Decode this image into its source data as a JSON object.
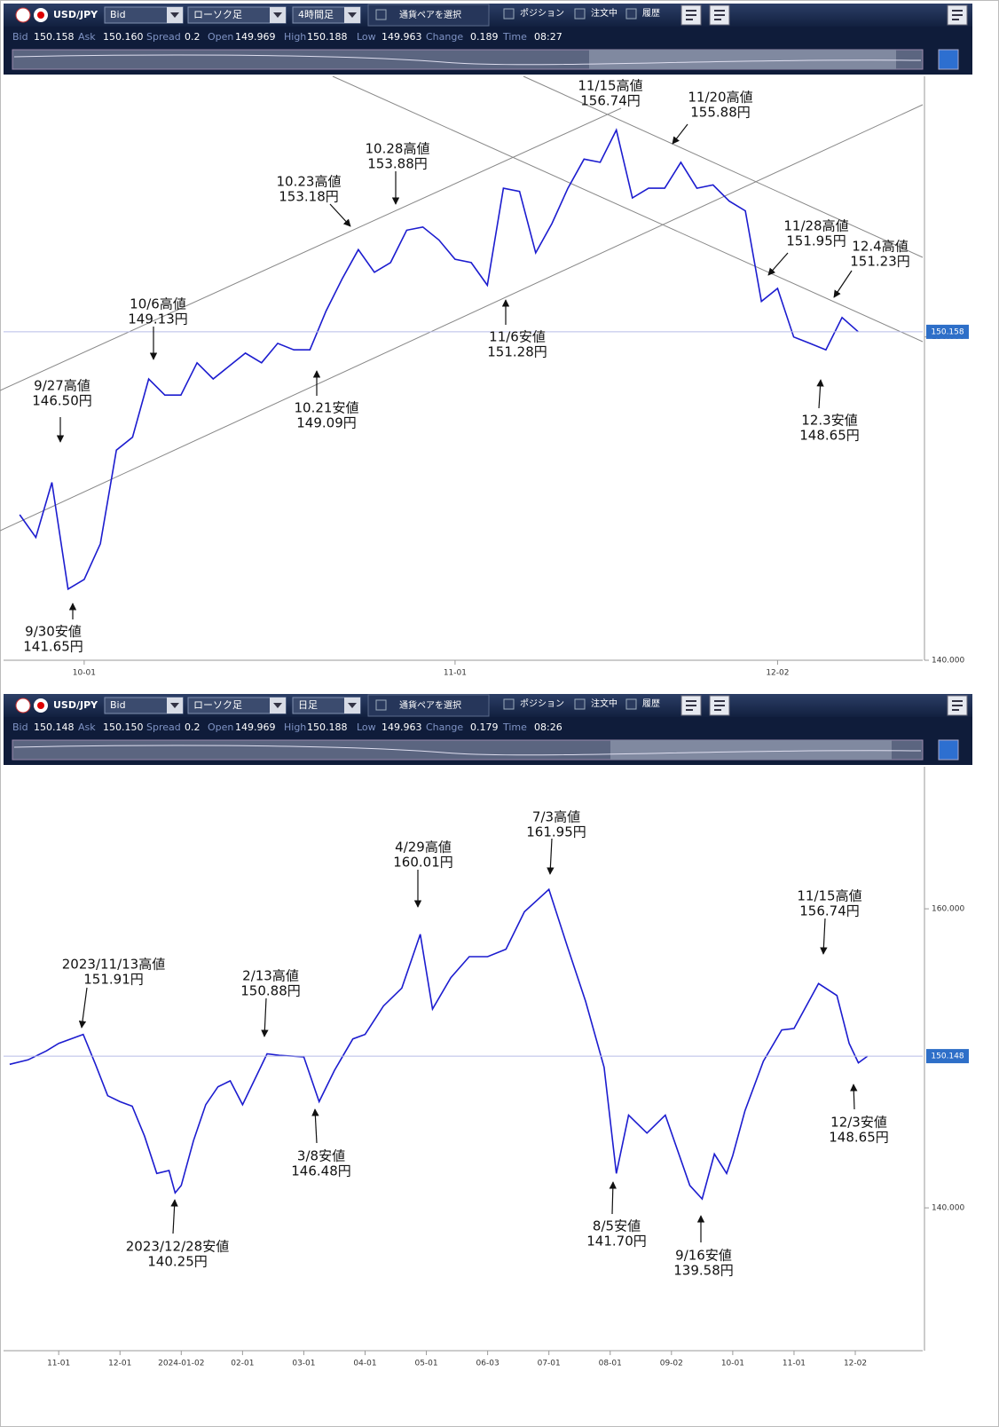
{
  "panels": [
    {
      "toolbar": {
        "pair": "USD/JPY",
        "side": "Bid",
        "chart_type": "ローソク足",
        "period": "4時間足",
        "select": "通貨ペアを選択",
        "position": "ポジション",
        "orders": "注文中",
        "history": "履歴"
      },
      "info": [
        {
          "label": "Bid",
          "value": "150.158"
        },
        {
          "label": "Ask",
          "value": "150.160"
        },
        {
          "label": "Spread",
          "value": "0.2"
        },
        {
          "label": "Open",
          "value": "149.969"
        },
        {
          "label": "High",
          "value": "150.188"
        },
        {
          "label": "Low",
          "value": "149.963"
        },
        {
          "label": "Change",
          "value": "0.189"
        },
        {
          "label": "Time",
          "value": "08:27"
        }
      ],
      "chart": {
        "type": "line",
        "color": "#1c1ccf",
        "x": [
          -4,
          -3,
          -2,
          -1,
          0,
          1,
          2,
          3,
          4,
          5,
          6,
          7,
          8,
          9,
          10,
          11,
          12,
          13,
          14,
          15,
          16,
          17,
          18,
          19,
          20,
          21,
          22,
          23,
          24,
          25,
          26,
          27,
          28,
          29,
          30,
          31,
          32,
          33,
          34,
          35,
          36,
          37,
          38,
          39,
          40,
          41,
          42,
          43,
          44,
          45,
          46,
          47,
          48
        ],
        "values": [
          144.5,
          143.8,
          145.5,
          142.2,
          142.5,
          143.6,
          146.5,
          146.9,
          148.7,
          148.2,
          148.2,
          149.2,
          148.7,
          149.1,
          149.5,
          149.2,
          149.8,
          149.6,
          149.6,
          150.8,
          151.8,
          152.7,
          152.0,
          152.3,
          153.3,
          153.4,
          153.0,
          152.4,
          152.3,
          151.6,
          154.6,
          154.5,
          152.6,
          153.5,
          154.6,
          155.5,
          155.4,
          156.4,
          154.3,
          154.6,
          154.6,
          155.4,
          154.6,
          154.7,
          154.2,
          153.9,
          151.1,
          151.5,
          150.0,
          149.8,
          149.6,
          150.6,
          150.16
        ],
        "xlim": [
          -5,
          52
        ],
        "ylim": [
          140,
          158.06
        ],
        "xticks": [
          {
            "value": 0,
            "label": "10-01"
          },
          {
            "value": 23,
            "label": "11-01"
          },
          {
            "value": 43,
            "label": "12-02"
          }
        ],
        "yticks": [
          {
            "value": 140,
            "label": "140.000"
          },
          {
            "value": 150,
            "label": "150.000"
          }
        ],
        "current_price": {
          "value": 150.158,
          "label": "150.158"
        },
        "annotations": [
          {
            "label": "9/27高値",
            "price": "146.50円"
          },
          {
            "label": "9/30安値",
            "price": "141.65円"
          },
          {
            "label": "10/6高値",
            "price": "149.13円"
          },
          {
            "label": "10.23高値",
            "price": "153.18円"
          },
          {
            "label": "10.28高値",
            "price": "153.88円"
          },
          {
            "label": "10.21安値",
            "price": "149.09円"
          },
          {
            "label": "11/6安値",
            "price": "151.28円"
          },
          {
            "label": "11/15高値",
            "price": "156.74円"
          },
          {
            "label": "11/20高値",
            "price": "155.88円"
          },
          {
            "label": "11/28高値",
            "price": "151.95円"
          },
          {
            "label": "12.4高値",
            "price": "151.23円"
          },
          {
            "label": "12.3安値",
            "price": "148.65円"
          }
        ]
      }
    },
    {
      "toolbar": {
        "pair": "USD/JPY",
        "side": "Bid",
        "chart_type": "ローソク足",
        "period": "日足",
        "select": "通貨ペアを選択",
        "position": "ポジション",
        "orders": "注文中",
        "history": "履歴"
      },
      "info": [
        {
          "label": "Bid",
          "value": "150.148"
        },
        {
          "label": "Ask",
          "value": "150.150"
        },
        {
          "label": "Spread",
          "value": "0.2"
        },
        {
          "label": "Open",
          "value": "149.969"
        },
        {
          "label": "High",
          "value": "150.188"
        },
        {
          "label": "Low",
          "value": "149.963"
        },
        {
          "label": "Change",
          "value": "0.179"
        },
        {
          "label": "Time",
          "value": "08:26"
        }
      ],
      "chart": {
        "type": "line",
        "color": "#1c1ccf",
        "x": [
          -0.8,
          -0.5,
          -0.2,
          0,
          0.4,
          0.6,
          0.8,
          1.0,
          1.2,
          1.4,
          1.6,
          1.8,
          1.9,
          2.0,
          2.2,
          2.4,
          2.6,
          2.8,
          3.0,
          3.4,
          3.6,
          4.0,
          4.25,
          4.5,
          4.8,
          5.0,
          5.3,
          5.6,
          5.9,
          6.1,
          6.4,
          6.7,
          7.0,
          7.3,
          7.6,
          8.0,
          8.3,
          8.6,
          8.9,
          9.1,
          9.3,
          9.6,
          9.9,
          10.3,
          10.5,
          10.7,
          10.9,
          11.0,
          11.2,
          11.5,
          11.8,
          12.0,
          12.4,
          12.7,
          12.9,
          13.05,
          13.2
        ],
        "values": [
          149.6,
          149.9,
          150.5,
          151.0,
          151.6,
          149.6,
          147.5,
          147.1,
          146.8,
          144.8,
          142.3,
          142.5,
          141.0,
          141.5,
          144.5,
          146.9,
          148.1,
          148.5,
          146.9,
          150.3,
          150.2,
          150.1,
          147.1,
          149.2,
          151.3,
          151.6,
          153.5,
          154.7,
          158.3,
          153.3,
          155.4,
          156.8,
          156.8,
          157.3,
          159.8,
          161.3,
          157.5,
          153.8,
          149.4,
          142.3,
          146.2,
          145.0,
          146.2,
          141.5,
          140.6,
          143.6,
          142.3,
          143.5,
          146.5,
          149.8,
          151.9,
          152.0,
          155.0,
          154.2,
          151.0,
          149.7,
          150.15
        ],
        "xlim": [
          -0.9,
          14.1
        ],
        "ylim": [
          130.45,
          169.5
        ],
        "xticks": [
          {
            "value": 0,
            "label": "11-01"
          },
          {
            "value": 1,
            "label": "12-01"
          },
          {
            "value": 2,
            "label": "2024-01-02"
          },
          {
            "value": 3,
            "label": "02-01"
          },
          {
            "value": 4,
            "label": "03-01"
          },
          {
            "value": 5,
            "label": "04-01"
          },
          {
            "value": 6,
            "label": "05-01"
          },
          {
            "value": 7,
            "label": "06-03"
          },
          {
            "value": 8,
            "label": "07-01"
          },
          {
            "value": 9,
            "label": "08-01"
          },
          {
            "value": 10,
            "label": "09-02"
          },
          {
            "value": 11,
            "label": "10-01"
          },
          {
            "value": 12,
            "label": "11-01"
          },
          {
            "value": 13,
            "label": "12-02"
          }
        ],
        "yticks": [
          {
            "value": 140,
            "label": "140.000"
          },
          {
            "value": 160,
            "label": "160.000"
          }
        ],
        "current_price": {
          "value": 150.148,
          "label": "150.148"
        },
        "annotations": [
          {
            "label": "2023/11/13高値",
            "price": "151.91円"
          },
          {
            "label": "2/13高値",
            "price": "150.88円"
          },
          {
            "label": "4/29高値",
            "price": "160.01円"
          },
          {
            "label": "7/3高値",
            "price": "161.95円"
          },
          {
            "label": "11/15高値",
            "price": "156.74円"
          },
          {
            "label": "3/8安値",
            "price": "146.48円"
          },
          {
            "label": "2023/12/28安値",
            "price": "140.25円"
          },
          {
            "label": "8/5安値",
            "price": "141.70円"
          },
          {
            "label": "9/16安値",
            "price": "139.58円"
          },
          {
            "label": "12/3安値",
            "price": "148.65円"
          }
        ]
      }
    }
  ]
}
